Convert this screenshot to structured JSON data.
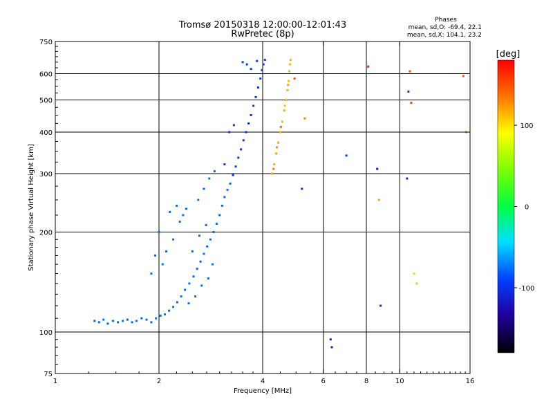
{
  "chart_data": {
    "type": "scatter",
    "title": "Tromsø 20150318 12:00:00-12:01:43",
    "subtitle": "RwPretec (8p)",
    "phases": {
      "heading": "Phases",
      "o_line": "mean, sd,O: -69.4, 22.1",
      "x_line": "mean, sd,X: 104.1, 23.2"
    },
    "xlabel": "Frequency [MHz]",
    "ylabel": "Stationary phase Virtual Height [km]",
    "x_scale": "log",
    "y_scale": "log",
    "xlim": [
      1,
      16
    ],
    "ylim": [
      75,
      750
    ],
    "x_ticks": [
      1,
      2,
      4,
      6,
      8,
      10,
      16
    ],
    "x_tick_labels": [
      "1",
      "2",
      "4",
      "6",
      "8",
      "10",
      "16"
    ],
    "x_grid": [
      2,
      4,
      6,
      8,
      10
    ],
    "y_ticks": [
      75,
      100,
      200,
      300,
      400,
      500,
      600,
      750
    ],
    "y_tick_labels": [
      "75",
      "100",
      "200",
      "300",
      "400",
      "500",
      "600",
      "750"
    ],
    "y_grid": [
      100,
      200,
      300,
      400,
      500,
      600
    ],
    "grid": true,
    "colorbar": {
      "label": "[deg]",
      "range": [
        -180,
        180
      ],
      "ticks": [
        100,
        0,
        -100
      ],
      "tick_labels": [
        "100",
        "0",
        "-100"
      ]
    },
    "series": [
      {
        "mode": "O",
        "points": [
          [
            1.3,
            108,
            -82
          ],
          [
            1.34,
            107,
            -78
          ],
          [
            1.38,
            109,
            -75
          ],
          [
            1.42,
            106,
            -80
          ],
          [
            1.47,
            108,
            -77
          ],
          [
            1.52,
            107,
            -79
          ],
          [
            1.57,
            108,
            -76
          ],
          [
            1.62,
            109,
            -81
          ],
          [
            1.67,
            107,
            -78
          ],
          [
            1.72,
            108,
            -74
          ],
          [
            1.78,
            110,
            -79
          ],
          [
            1.84,
            109,
            -77
          ],
          [
            1.9,
            107,
            -80
          ],
          [
            1.96,
            110,
            -76
          ],
          [
            2.02,
            112,
            -78
          ],
          [
            2.08,
            113,
            -75
          ],
          [
            2.14,
            116,
            -79
          ],
          [
            2.2,
            119,
            -77
          ],
          [
            2.26,
            123,
            -80
          ],
          [
            2.32,
            128,
            -76
          ],
          [
            2.38,
            134,
            -78
          ],
          [
            2.45,
            140,
            -74
          ],
          [
            2.52,
            147,
            -79
          ],
          [
            2.58,
            155,
            -77
          ],
          [
            2.64,
            163,
            -81
          ],
          [
            2.7,
            172,
            -76
          ],
          [
            2.76,
            181,
            -78
          ],
          [
            2.82,
            190,
            -75
          ],
          [
            2.88,
            200,
            -79
          ],
          [
            2.94,
            212,
            -77
          ],
          [
            3.0,
            225,
            -80
          ],
          [
            3.05,
            240,
            -76
          ],
          [
            3.1,
            255,
            -78
          ],
          [
            3.16,
            268,
            -75
          ],
          [
            3.22,
            280,
            -79
          ],
          [
            3.28,
            297,
            -95
          ],
          [
            3.34,
            315,
            -98
          ],
          [
            3.4,
            335,
            -96
          ],
          [
            3.46,
            355,
            -99
          ],
          [
            3.52,
            378,
            -97
          ],
          [
            3.58,
            400,
            -100
          ],
          [
            3.64,
            425,
            -98
          ],
          [
            3.7,
            450,
            -96
          ],
          [
            3.76,
            480,
            -99
          ],
          [
            3.82,
            510,
            -97
          ],
          [
            3.88,
            545,
            -100
          ],
          [
            3.94,
            580,
            -98
          ],
          [
            3.98,
            615,
            -96
          ],
          [
            4.02,
            640,
            -99
          ],
          [
            4.06,
            660,
            -97
          ],
          [
            2.05,
            160,
            -75
          ],
          [
            2.1,
            175,
            -78
          ],
          [
            2.2,
            190,
            -76
          ],
          [
            2.3,
            215,
            -79
          ],
          [
            2.4,
            235,
            -77
          ],
          [
            2.15,
            230,
            -80
          ],
          [
            2.25,
            240,
            -76
          ],
          [
            2.35,
            225,
            -78
          ],
          [
            2.6,
            250,
            -75
          ],
          [
            2.7,
            270,
            -79
          ],
          [
            2.8,
            290,
            -77
          ],
          [
            2.9,
            305,
            -80
          ],
          [
            1.9,
            150,
            -76
          ],
          [
            1.95,
            170,
            -78
          ],
          [
            2.0,
            200,
            -75
          ],
          [
            2.5,
            175,
            -79
          ],
          [
            2.62,
            195,
            -77
          ],
          [
            2.74,
            210,
            -80
          ],
          [
            2.86,
            160,
            -76
          ],
          [
            2.78,
            145,
            -78
          ],
          [
            2.66,
            138,
            -75
          ],
          [
            2.55,
            128,
            -79
          ],
          [
            2.44,
            122,
            -77
          ],
          [
            3.5,
            650,
            -90
          ],
          [
            3.6,
            640,
            -95
          ],
          [
            3.7,
            620,
            -92
          ],
          [
            3.85,
            655,
            -96
          ],
          [
            3.2,
            400,
            -100
          ],
          [
            3.3,
            420,
            -98
          ],
          [
            3.1,
            320,
            -95
          ]
        ]
      },
      {
        "mode": "X",
        "points": [
          [
            4.25,
            300,
            122
          ],
          [
            4.32,
            320,
            118
          ],
          [
            4.38,
            345,
            121
          ],
          [
            4.44,
            372,
            117
          ],
          [
            4.5,
            400,
            120
          ],
          [
            4.56,
            430,
            116
          ],
          [
            4.62,
            465,
            119
          ],
          [
            4.68,
            500,
            115
          ],
          [
            4.72,
            535,
            118
          ],
          [
            4.76,
            570,
            114
          ],
          [
            4.78,
            610,
            117
          ],
          [
            4.8,
            640,
            113
          ],
          [
            4.82,
            660,
            116
          ],
          [
            4.3,
            310,
            135
          ],
          [
            4.4,
            360,
            128
          ],
          [
            4.52,
            415,
            140
          ],
          [
            4.64,
            480,
            110
          ],
          [
            4.74,
            555,
            125
          ],
          [
            5.3,
            440,
            130
          ],
          [
            4.95,
            580,
            150
          ],
          [
            6.3,
            95,
            -110
          ],
          [
            6.35,
            90,
            -120
          ],
          [
            7.0,
            340,
            -90
          ],
          [
            5.2,
            270,
            -100
          ],
          [
            8.6,
            310,
            -120
          ],
          [
            8.8,
            120,
            -110
          ],
          [
            10.5,
            290,
            -100
          ],
          [
            10.6,
            530,
            -110
          ],
          [
            10.7,
            610,
            150
          ],
          [
            10.8,
            490,
            160
          ],
          [
            11.0,
            150,
            100
          ],
          [
            11.2,
            140,
            50
          ],
          [
            15.3,
            590,
            150
          ],
          [
            15.6,
            400,
            130
          ],
          [
            8.1,
            630,
            170
          ],
          [
            8.7,
            250,
            120
          ]
        ]
      }
    ]
  }
}
